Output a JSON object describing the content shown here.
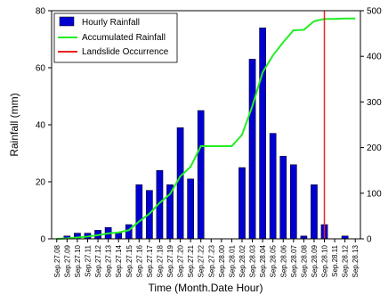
{
  "chart_data": {
    "type": "bar",
    "xlabel": "Time (Month.Date Hour)",
    "ylabel": "Rainfall (mm)",
    "ylim": [
      0,
      80
    ],
    "y2lim": [
      0,
      500
    ],
    "yticks": [
      0,
      20,
      40,
      60,
      80
    ],
    "y2ticks": [
      0,
      100,
      200,
      300,
      400,
      500
    ],
    "legend_position": "top-left",
    "colors": {
      "bars": "#0000d0",
      "accumulated": "#22ee22",
      "landslide": "#ee2222"
    },
    "categories": [
      "Sep.27.08",
      "Sep.27.09",
      "Sep.27.10",
      "Sep.27.11",
      "Sep.27.12",
      "Sep.27.13",
      "Sep.27.14",
      "Sep.27.15",
      "Sep.27.16",
      "Sep.27.17",
      "Sep.27.18",
      "Sep.27.19",
      "Sep.27.20",
      "Sep.27.21",
      "Sep.27.22",
      "Sep.27.23",
      "Sep.28.00",
      "Sep.28.01",
      "Sep.28.02",
      "Sep.28.03",
      "Sep.28.04",
      "Sep.28.05",
      "Sep.28.06",
      "Sep.28.07",
      "Sep.28.08",
      "Sep.28.09",
      "Sep.28.10",
      "Sep.28.11",
      "Sep.28.12",
      "Sep.28.13"
    ],
    "series": [
      {
        "name": "Hourly Rainfall",
        "kind": "bar",
        "axis": "left",
        "values": [
          0,
          1,
          2,
          2,
          3,
          4,
          2,
          5,
          19,
          17,
          24,
          19,
          39,
          21,
          45,
          0,
          0,
          0,
          25,
          63,
          74,
          37,
          29,
          26,
          1,
          19,
          5,
          0,
          1,
          0
        ]
      },
      {
        "name": "Accumulated Rainfall",
        "kind": "line",
        "axis": "right",
        "values": [
          0,
          1,
          3,
          5,
          8,
          12,
          14,
          19,
          38,
          55,
          79,
          98,
          137,
          158,
          203,
          203,
          203,
          203,
          228,
          291,
          365,
          402,
          431,
          457,
          458,
          477,
          482,
          482,
          483,
          483
        ]
      }
    ],
    "landslide": {
      "name": "Landslide Occurrence",
      "at": "Sep.28.10"
    }
  }
}
